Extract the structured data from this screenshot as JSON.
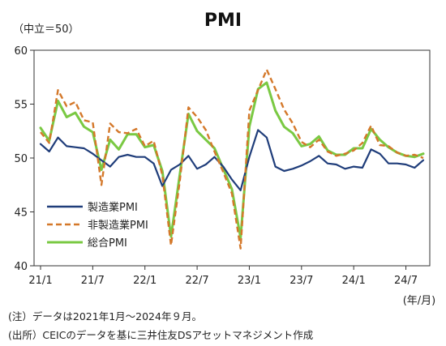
{
  "chart_data": {
    "type": "line",
    "title": "PMI",
    "unit_label": "（中立＝50）",
    "x_tick_labels": [
      "21/1",
      "21/7",
      "22/1",
      "22/7",
      "23/1",
      "23/7",
      "24/1",
      "24/7"
    ],
    "x_axis_unit": "(年/月)",
    "x": [
      "2021-01",
      "2021-02",
      "2021-03",
      "2021-04",
      "2021-05",
      "2021-06",
      "2021-07",
      "2021-08",
      "2021-09",
      "2021-10",
      "2021-11",
      "2021-12",
      "2022-01",
      "2022-02",
      "2022-03",
      "2022-04",
      "2022-05",
      "2022-06",
      "2022-07",
      "2022-08",
      "2022-09",
      "2022-10",
      "2022-11",
      "2022-12",
      "2023-01",
      "2023-02",
      "2023-03",
      "2023-04",
      "2023-05",
      "2023-06",
      "2023-07",
      "2023-08",
      "2023-09",
      "2023-10",
      "2023-11",
      "2023-12",
      "2024-01",
      "2024-02",
      "2024-03",
      "2024-04",
      "2024-05",
      "2024-06",
      "2024-07",
      "2024-08",
      "2024-09"
    ],
    "ylim": [
      40,
      60
    ],
    "yticks": [
      40,
      45,
      50,
      55,
      60
    ],
    "grid": false,
    "legend_position": "bottom-left",
    "series": [
      {
        "name": "製造業PMI",
        "color": "#1f3d7a",
        "dash": "solid",
        "values": [
          51.3,
          50.6,
          51.9,
          51.1,
          51.0,
          50.9,
          50.4,
          49.8,
          49.2,
          50.1,
          50.3,
          50.1,
          50.1,
          49.5,
          47.4,
          48.9,
          49.4,
          50.2,
          49.0,
          49.4,
          50.1,
          49.2,
          48.0,
          47.0,
          50.1,
          52.6,
          51.9,
          49.2,
          48.8,
          49.0,
          49.3,
          49.7,
          50.2,
          49.5,
          49.4,
          49.0,
          49.2,
          49.1,
          50.8,
          50.4,
          49.5,
          49.5,
          49.4,
          49.1,
          49.8
        ]
      },
      {
        "name": "非製造業PMI",
        "color": "#d4782a",
        "dash": "dashed",
        "values": [
          52.4,
          51.4,
          56.3,
          54.8,
          55.2,
          53.5,
          53.3,
          47.5,
          53.2,
          52.4,
          52.3,
          52.7,
          51.1,
          51.6,
          48.4,
          41.9,
          47.8,
          54.7,
          53.8,
          52.6,
          50.6,
          48.7,
          46.7,
          41.6,
          54.4,
          56.3,
          58.2,
          56.4,
          54.5,
          53.2,
          51.5,
          51.0,
          51.7,
          50.6,
          50.2,
          50.4,
          50.7,
          51.4,
          53.0,
          51.2,
          51.1,
          50.5,
          50.2,
          50.3,
          50.0
        ]
      },
      {
        "name": "総合PMI",
        "color": "#7ac943",
        "dash": "solid",
        "values": [
          52.8,
          51.6,
          55.3,
          53.8,
          54.2,
          52.9,
          52.4,
          48.9,
          51.7,
          50.8,
          52.2,
          52.2,
          51.0,
          51.2,
          48.8,
          42.7,
          48.4,
          54.1,
          52.5,
          51.7,
          50.9,
          49.0,
          47.1,
          42.6,
          52.9,
          56.4,
          57.0,
          54.4,
          52.9,
          52.3,
          51.1,
          51.3,
          52.0,
          50.7,
          50.3,
          50.3,
          50.9,
          50.9,
          52.7,
          51.7,
          51.0,
          50.5,
          50.2,
          50.1,
          50.4
        ]
      }
    ]
  },
  "notes": {
    "note": "(注）データは2021年1月～2024年９月。",
    "source": "(出所）CEICのデータを基に三井住友DSアセットマネジメント作成"
  }
}
